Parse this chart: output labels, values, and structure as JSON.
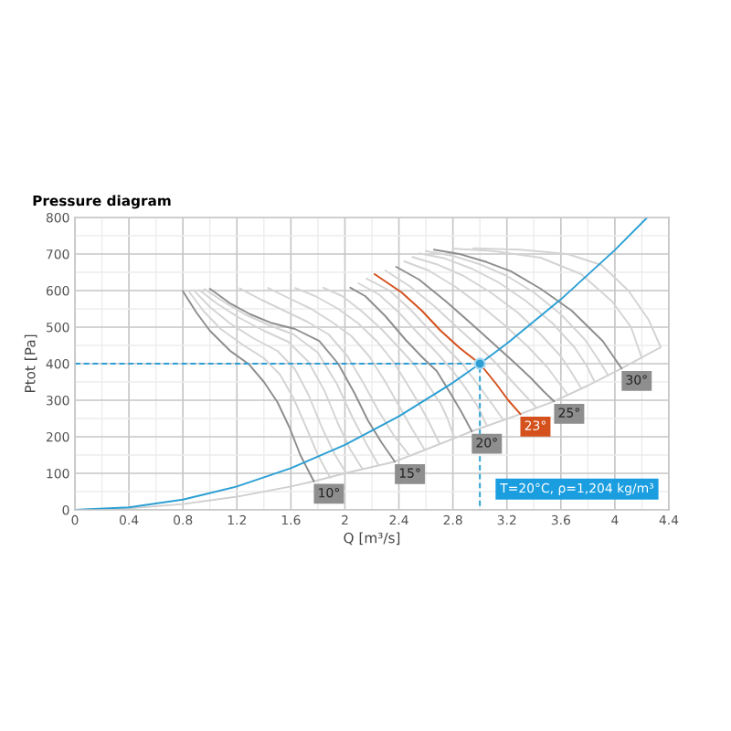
{
  "chart_data": {
    "type": "line",
    "title": "Pressure diagram",
    "xlabel": "Q [m³/s]",
    "ylabel": "Ptot [Pa]",
    "xlim": [
      0,
      4.4
    ],
    "ylim": [
      0,
      800
    ],
    "xticks": [
      0,
      {
        "value": 0.2,
        "label": null
      },
      0.4,
      {
        "value": 0.6,
        "label": null
      },
      0.8,
      {
        "value": 1.0,
        "label": null
      },
      1.2,
      {
        "value": 1.4,
        "label": null
      },
      1.6,
      {
        "value": 1.8,
        "label": null
      },
      2,
      {
        "value": 2.2,
        "label": null
      },
      2.4,
      {
        "value": 2.6,
        "label": null
      },
      2.8,
      {
        "value": 3.0,
        "label": null
      },
      3.2,
      {
        "value": 3.4,
        "label": null
      },
      3.6,
      {
        "value": 3.8,
        "label": null
      },
      4,
      {
        "value": 4.2,
        "label": null
      },
      4.4
    ],
    "yticks": [
      0,
      {
        "value": 50,
        "label": null
      },
      100,
      {
        "value": 150,
        "label": null
      },
      200,
      {
        "value": 250,
        "label": null
      },
      300,
      {
        "value": 350,
        "label": null
      },
      400,
      {
        "value": 450,
        "label": null
      },
      500,
      {
        "value": 550,
        "label": null
      },
      600,
      {
        "value": 650,
        "label": null
      },
      700,
      {
        "value": 750,
        "label": null
      },
      800
    ],
    "grid": true,
    "annotations": [
      "T=20°C, ρ=1,204 kg/m³"
    ],
    "series": [
      {
        "color": "#cfcfcf",
        "x": [
          0,
          0.4,
          0.8,
          1.2,
          1.6,
          1.77,
          2.0,
          2.37,
          2.6,
          2.94,
          3.3,
          3.55,
          3.8,
          4.05,
          4.34
        ],
        "values": [
          0,
          4,
          16,
          36,
          64,
          78,
          100,
          132,
          165,
          215,
          262,
          297,
          340,
          387,
          445
        ]
      },
      {
        "color": "#d4d4d4",
        "x": [
          0.84,
          0.95,
          1.08,
          1.25,
          1.4,
          1.52,
          1.62,
          1.72,
          1.8,
          1.89
        ],
        "values": [
          600,
          545,
          495,
          450,
          415,
          370,
          305,
          220,
          150,
          88
        ]
      },
      {
        "color": "#d4d4d4",
        "x": [
          0.88,
          1.0,
          1.15,
          1.32,
          1.5,
          1.63,
          1.73,
          1.83,
          1.92,
          2.01
        ],
        "values": [
          601,
          555,
          510,
          470,
          435,
          385,
          315,
          225,
          155,
          100
        ]
      },
      {
        "color": "#d4d4d4",
        "x": [
          0.92,
          1.05,
          1.22,
          1.4,
          1.58,
          1.73,
          1.85,
          1.95,
          2.04,
          2.13
        ],
        "values": [
          602,
          565,
          525,
          490,
          460,
          405,
          325,
          235,
          165,
          112
        ]
      },
      {
        "color": "#d4d4d4",
        "x": [
          0.96,
          1.1,
          1.26,
          1.44,
          1.62,
          1.8,
          1.94,
          2.06,
          2.16,
          2.25
        ],
        "values": [
          604,
          570,
          535,
          505,
          480,
          430,
          345,
          250,
          180,
          122
        ]
      },
      {
        "color": "#d4d4d4",
        "x": [
          1.22,
          1.38,
          1.55,
          1.72,
          1.88,
          2.02,
          2.14,
          2.25,
          2.36,
          2.48
        ],
        "values": [
          606,
          575,
          545,
          515,
          480,
          420,
          345,
          270,
          205,
          148
        ]
      },
      {
        "color": "#d4d4d4",
        "x": [
          1.43,
          1.58,
          1.75,
          1.9,
          2.05,
          2.18,
          2.3,
          2.4,
          2.5,
          2.59
        ],
        "values": [
          607,
          580,
          550,
          515,
          475,
          420,
          350,
          285,
          220,
          165
        ]
      },
      {
        "color": "#d4d4d4",
        "x": [
          1.63,
          1.78,
          1.95,
          2.1,
          2.24,
          2.36,
          2.46,
          2.55,
          2.63,
          2.7
        ],
        "values": [
          607,
          585,
          550,
          510,
          460,
          405,
          345,
          290,
          235,
          182
        ]
      },
      {
        "color": "#d4d4d4",
        "x": [
          1.84,
          1.98,
          2.12,
          2.27,
          2.41,
          2.52,
          2.62,
          2.71,
          2.76,
          2.81
        ],
        "values": [
          608,
          585,
          545,
          495,
          440,
          395,
          340,
          290,
          250,
          198
        ]
      },
      {
        "color": "#d4d4d4",
        "x": [
          2.1,
          2.25,
          2.4,
          2.55,
          2.68,
          2.8,
          2.9,
          2.98,
          3.05
        ],
        "values": [
          620,
          590,
          540,
          480,
          430,
          380,
          330,
          285,
          232
        ]
      },
      {
        "color": "#d4d4d4",
        "x": [
          2.16,
          2.33,
          2.48,
          2.62,
          2.76,
          2.88,
          2.98,
          3.08,
          3.17
        ],
        "values": [
          633,
          600,
          550,
          495,
          440,
          395,
          345,
          295,
          248
        ]
      },
      {
        "color": "#d4d4d4",
        "x": [
          2.3,
          2.48,
          2.66,
          2.83,
          2.98,
          3.11,
          3.23,
          3.33,
          3.42
        ],
        "values": [
          655,
          612,
          558,
          500,
          450,
          405,
          355,
          315,
          280
        ]
      },
      {
        "color": "#d4d4d4",
        "x": [
          2.44,
          2.62,
          2.82,
          3.02,
          3.2,
          3.36,
          3.5,
          3.58,
          3.65
        ],
        "values": [
          680,
          655,
          610,
          555,
          500,
          445,
          390,
          350,
          315
        ]
      },
      {
        "color": "#d4d4d4",
        "x": [
          2.5,
          2.68,
          2.88,
          3.08,
          3.28,
          3.45,
          3.6,
          3.68,
          3.75
        ],
        "values": [
          692,
          672,
          640,
          595,
          540,
          480,
          420,
          375,
          333
        ]
      },
      {
        "color": "#d4d4d4",
        "x": [
          2.55,
          2.74,
          2.94,
          3.14,
          3.34,
          3.54,
          3.7,
          3.79,
          3.85
        ],
        "values": [
          702,
          688,
          660,
          622,
          572,
          510,
          445,
          395,
          350
        ]
      },
      {
        "color": "#d4d4d4",
        "x": [
          2.6,
          2.8,
          3.0,
          3.2,
          3.4,
          3.6,
          3.78,
          3.88,
          3.95
        ],
        "values": [
          708,
          695,
          672,
          640,
          595,
          535,
          465,
          410,
          368
        ]
      },
      {
        "color": "#d4d4d4",
        "x": [
          2.8,
          3.1,
          3.45,
          3.75,
          3.98,
          4.12,
          4.2
        ],
        "values": [
          715,
          708,
          690,
          645,
          570,
          500,
          415
        ]
      },
      {
        "color": "#d4d4d4",
        "x": [
          2.95,
          3.3,
          3.65,
          3.9,
          4.1,
          4.25,
          4.34
        ],
        "values": [
          716,
          712,
          700,
          670,
          600,
          520,
          445
        ]
      },
      {
        "name": "10°",
        "color": "#8e8e8e",
        "x": [
          0.8,
          0.9,
          1.0,
          1.15,
          1.29,
          1.4,
          1.5,
          1.59,
          1.67,
          1.77
        ],
        "values": [
          598,
          540,
          490,
          435,
          398,
          350,
          295,
          225,
          150,
          78
        ]
      },
      {
        "name": "15°",
        "color": "#8e8e8e",
        "x": [
          1.0,
          1.15,
          1.3,
          1.45,
          1.63,
          1.81,
          1.95,
          2.07,
          2.17,
          2.27,
          2.37
        ],
        "values": [
          605,
          565,
          535,
          512,
          495,
          462,
          400,
          320,
          245,
          185,
          132
        ]
      },
      {
        "name": "20°",
        "color": "#8e8e8e",
        "x": [
          2.04,
          2.15,
          2.3,
          2.45,
          2.58,
          2.68,
          2.78,
          2.86,
          2.94
        ],
        "values": [
          608,
          585,
          530,
          465,
          415,
          380,
          320,
          270,
          215
        ]
      },
      {
        "name": "25°",
        "color": "#8e8e8e",
        "x": [
          2.38,
          2.55,
          2.75,
          2.95,
          3.1,
          3.25,
          3.38,
          3.47,
          3.55
        ],
        "values": [
          665,
          630,
          570,
          505,
          455,
          405,
          360,
          325,
          297
        ]
      },
      {
        "name": "30°",
        "color": "#8e8e8e",
        "x": [
          2.66,
          2.85,
          3.05,
          3.23,
          3.45,
          3.68,
          3.91,
          4.05
        ],
        "values": [
          712,
          700,
          678,
          653,
          605,
          545,
          462,
          387
        ]
      },
      {
        "name": "23°",
        "color": "#d4501c",
        "x": [
          2.22,
          2.42,
          2.57,
          2.71,
          2.85,
          3.0,
          3.12,
          3.21,
          3.3
        ],
        "values": [
          645,
          595,
          545,
          490,
          443,
          400,
          345,
          300,
          262
        ]
      },
      {
        "color": "#2b9fd4",
        "x": [
          0,
          0.4,
          0.8,
          1.2,
          1.6,
          2.0,
          2.4,
          2.8,
          3.0,
          3.2,
          3.6,
          4.0,
          4.24
        ],
        "values": [
          0,
          7,
          28,
          64,
          114,
          178,
          256,
          348,
          400,
          455,
          576,
          711,
          800
        ]
      },
      {
        "color": "#2b9fd4",
        "line_style": "dashed",
        "x": [
          0,
          3.0,
          3.0
        ],
        "values": [
          400,
          400,
          0
        ]
      },
      {
        "type": "scatter",
        "marker": "circle",
        "color": "#2b9fd4",
        "x": [
          3.0
        ],
        "values": [
          400
        ]
      }
    ]
  }
}
